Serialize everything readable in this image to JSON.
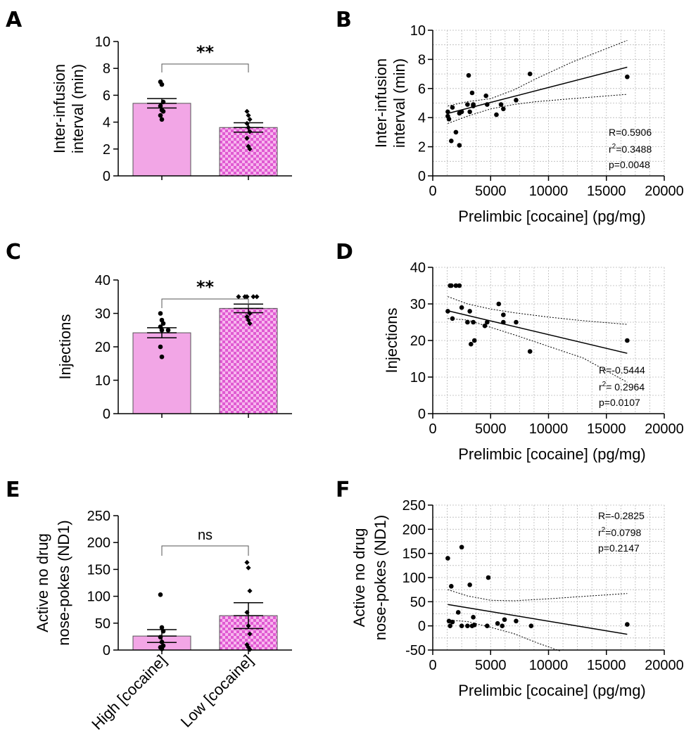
{
  "colors": {
    "bar_fill": "#f2a6e6",
    "checker_light": "#f7b6ee",
    "checker_dark": "#e05ad2",
    "bar_edge": "#555555",
    "point": "#000000",
    "grid": "#b8b8b8"
  },
  "chart_data": [
    {
      "panel": "A",
      "type": "bar",
      "categories": [
        "High [cocaine]",
        "Low [cocaine]"
      ],
      "values": [
        5.4,
        3.6
      ],
      "errors": [
        0.35,
        0.35
      ],
      "points": [
        [
          7.0,
          6.8,
          5.5,
          5.2,
          4.9,
          4.8,
          4.5,
          4.2
        ],
        [
          4.8,
          4.5,
          4.2,
          3.9,
          3.6,
          3.3,
          2.8,
          2.2,
          2.0
        ]
      ],
      "ylabel": [
        "Inter-infusion",
        "interval (min)"
      ],
      "ylim": [
        0,
        10
      ],
      "yticks": [
        0,
        2,
        4,
        6,
        8,
        10
      ],
      "significance": "**"
    },
    {
      "panel": "B",
      "type": "scatter",
      "x": [
        1300,
        1300,
        1400,
        1600,
        1700,
        2000,
        2300,
        2300,
        2500,
        3000,
        3100,
        3200,
        3400,
        3500,
        3500,
        4600,
        4700,
        5500,
        5900,
        6100,
        7200,
        8400,
        16800
      ],
      "y": [
        4.1,
        4.4,
        3.9,
        2.4,
        4.7,
        3.0,
        2.1,
        4.3,
        4.4,
        4.9,
        6.9,
        4.4,
        5.7,
        4.9,
        4.8,
        5.5,
        4.9,
        4.2,
        4.9,
        4.6,
        5.2,
        7.0,
        6.8
      ],
      "fit": {
        "slope": 0.000205,
        "intercept": 4.02
      },
      "ci_upper": [
        [
          1300,
          4.8
        ],
        [
          3000,
          5.1
        ],
        [
          5000,
          5.3
        ],
        [
          7000,
          5.9
        ],
        [
          9000,
          6.7
        ],
        [
          12000,
          7.8
        ],
        [
          16800,
          9.3
        ]
      ],
      "ci_lower": [
        [
          1300,
          3.6
        ],
        [
          3000,
          4.1
        ],
        [
          5000,
          4.6
        ],
        [
          7000,
          4.9
        ],
        [
          9000,
          5.1
        ],
        [
          12000,
          5.3
        ],
        [
          16800,
          5.6
        ]
      ],
      "xlabel": "Prelimbic [cocaine] (pg/mg)",
      "ylabel": [
        "Inter-infusion",
        "interval (min)"
      ],
      "xlim": [
        0,
        20000
      ],
      "ylim": [
        0,
        10
      ],
      "xticks": [
        0,
        5000,
        10000,
        15000,
        20000
      ],
      "yticks": [
        0,
        2,
        4,
        6,
        8,
        10
      ],
      "stats": {
        "r": "R=0.5906",
        "r2_base": "r",
        "r2_exp": "2",
        "r2_val": "=0.3488",
        "p": "p=0.0048"
      },
      "grid": true
    },
    {
      "panel": "C",
      "type": "bar",
      "categories": [
        "High [cocaine]",
        "Low [cocaine]"
      ],
      "values": [
        24.2,
        31.5
      ],
      "errors": [
        1.5,
        1.3
      ],
      "points": [
        [
          30,
          28,
          27,
          26,
          25,
          25,
          20,
          17
        ],
        [
          35,
          35,
          35,
          35,
          35,
          30,
          29,
          28,
          27
        ]
      ],
      "ylabel": [
        "Injections"
      ],
      "ylim": [
        0,
        40
      ],
      "yticks": [
        0,
        10,
        20,
        30,
        40
      ],
      "significance": "**"
    },
    {
      "panel": "D",
      "type": "scatter",
      "x": [
        1300,
        1500,
        1600,
        1700,
        2000,
        2300,
        2500,
        3000,
        3200,
        3300,
        3500,
        3600,
        4500,
        4700,
        5700,
        6100,
        6100,
        7200,
        8400,
        16800
      ],
      "y": [
        28,
        35,
        35,
        26,
        35,
        35,
        29,
        25,
        28,
        19,
        25,
        20,
        24,
        25,
        30,
        27,
        25,
        25,
        17,
        20
      ],
      "fit": {
        "slope": -0.00075,
        "intercept": 29.1
      },
      "ci_upper": [
        [
          1300,
          32.0
        ],
        [
          3000,
          30.0
        ],
        [
          5000,
          28.6
        ],
        [
          7000,
          27.6
        ],
        [
          10000,
          26.4
        ],
        [
          13000,
          25.4
        ],
        [
          16800,
          24.4
        ]
      ],
      "ci_lower": [
        [
          1300,
          26.0
        ],
        [
          3000,
          25.6
        ],
        [
          5000,
          23.6
        ],
        [
          7000,
          21.6
        ],
        [
          10000,
          18.4
        ],
        [
          13000,
          15.2
        ],
        [
          16800,
          8.6
        ]
      ],
      "xlabel": "Prelimbic [cocaine] (pg/mg)",
      "ylabel": [
        "Injections"
      ],
      "xlim": [
        0,
        20000
      ],
      "ylim": [
        0,
        40
      ],
      "xticks": [
        0,
        5000,
        10000,
        15000,
        20000
      ],
      "yticks": [
        0,
        10,
        20,
        30,
        40
      ],
      "stats": {
        "r": "R=-0.5444",
        "r2_base": "r",
        "r2_exp": "2",
        "r2_val": "= 0.2964",
        "p": "p=0.0107"
      },
      "grid": true
    },
    {
      "panel": "E",
      "type": "bar",
      "categories": [
        "High [cocaine]",
        "Low [cocaine]"
      ],
      "values": [
        26,
        64
      ],
      "errors": [
        12,
        24
      ],
      "points": [
        [
          103,
          42,
          35,
          24,
          15,
          8,
          5,
          2
        ],
        [
          163,
          153,
          110,
          70,
          45,
          30,
          10,
          5,
          1
        ]
      ],
      "ylabel": [
        "Active no drug",
        "nose-pokes (ND1)"
      ],
      "ylim": [
        0,
        250
      ],
      "yticks": [
        0,
        50,
        100,
        150,
        200,
        250
      ],
      "significance": "ns"
    },
    {
      "panel": "F",
      "type": "scatter",
      "x": [
        1300,
        1400,
        1500,
        1600,
        1700,
        2200,
        2500,
        2500,
        3000,
        3200,
        3400,
        3500,
        3600,
        4700,
        4800,
        5600,
        6000,
        6200,
        7200,
        8500,
        16800
      ],
      "y": [
        140,
        10,
        0,
        82,
        8,
        28,
        163,
        0,
        0,
        85,
        0,
        18,
        2,
        0,
        100,
        5,
        0,
        13,
        10,
        0,
        3
      ],
      "fit": {
        "slope": -0.00398,
        "intercept": 49.5
      },
      "ci_upper": [
        [
          1300,
          75
        ],
        [
          3000,
          62
        ],
        [
          5000,
          53
        ],
        [
          7000,
          52
        ],
        [
          10000,
          56
        ],
        [
          13000,
          61
        ],
        [
          16800,
          67
        ]
      ],
      "ci_lower": [
        [
          1300,
          12
        ],
        [
          3000,
          9
        ],
        [
          5000,
          -3
        ],
        [
          7000,
          -16
        ],
        [
          9000,
          -35
        ],
        [
          11000,
          -52
        ]
      ],
      "xlabel": "Prelimbic [cocaine] (pg/mg)",
      "ylabel": [
        "Active no drug",
        "nose-pokes (ND1)"
      ],
      "xlim": [
        0,
        20000
      ],
      "ylim": [
        -50,
        250
      ],
      "xticks": [
        0,
        5000,
        10000,
        15000,
        20000
      ],
      "yticks": [
        -50,
        0,
        50,
        100,
        150,
        200,
        250
      ],
      "stats": {
        "r": "R=-0.2825",
        "r2_base": "r",
        "r2_exp": "2",
        "r2_val": "=0.0798",
        "p": "p=0.2147"
      },
      "grid": true
    }
  ]
}
